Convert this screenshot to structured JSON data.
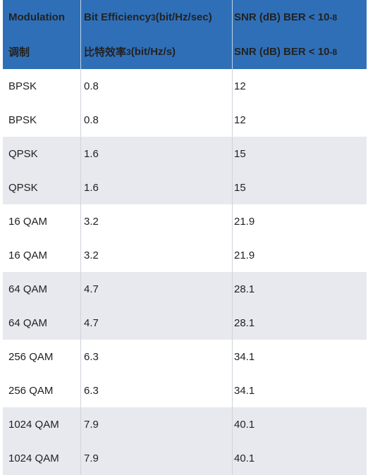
{
  "header": {
    "en": {
      "modulation": "Modulation",
      "bit_eff": "Bit Efficiency",
      "bit_eff_sup": "3",
      "bit_eff_unit": " (bit/Hz/sec)",
      "snr": "SNR (dB) BER < 10",
      "snr_sup": "-8"
    },
    "zh": {
      "modulation": "调制",
      "bit_eff": "比特效率",
      "bit_eff_sup": "3",
      "bit_eff_unit": " (bit/Hz/s)",
      "snr": "SNR (dB) BER < 10",
      "snr_sup": "-8"
    }
  },
  "groups": [
    {
      "shade": false,
      "rows": [
        {
          "mod": "BPSK",
          "eff": "0.8",
          "snr": "12"
        },
        {
          "mod": "BPSK",
          "eff": "0.8",
          "snr": "12"
        }
      ]
    },
    {
      "shade": true,
      "rows": [
        {
          "mod": "QPSK",
          "eff": "1.6",
          "snr": "15"
        },
        {
          "mod": "QPSK",
          "eff": "1.6",
          "snr": "15"
        }
      ]
    },
    {
      "shade": false,
      "rows": [
        {
          "mod": "16 QAM",
          "eff": "3.2",
          "snr": "21.9"
        },
        {
          "mod": "16 QAM",
          "eff": "3.2",
          "snr": "21.9"
        }
      ]
    },
    {
      "shade": true,
      "rows": [
        {
          "mod": "64 QAM",
          "eff": "4.7",
          "snr": "28.1"
        },
        {
          "mod": "64 QAM",
          "eff": "4.7",
          "snr": "28.1"
        }
      ]
    },
    {
      "shade": false,
      "rows": [
        {
          "mod": "256 QAM",
          "eff": "6.3",
          "snr": "34.1"
        },
        {
          "mod": "256 QAM",
          "eff": "6.3",
          "snr": "34.1"
        }
      ]
    },
    {
      "shade": true,
      "rows": [
        {
          "mod": "1024 QAM",
          "eff": "7.9",
          "snr": "40.1"
        },
        {
          "mod": "1024 QAM",
          "eff": "7.9",
          "snr": "40.1"
        }
      ]
    }
  ]
}
